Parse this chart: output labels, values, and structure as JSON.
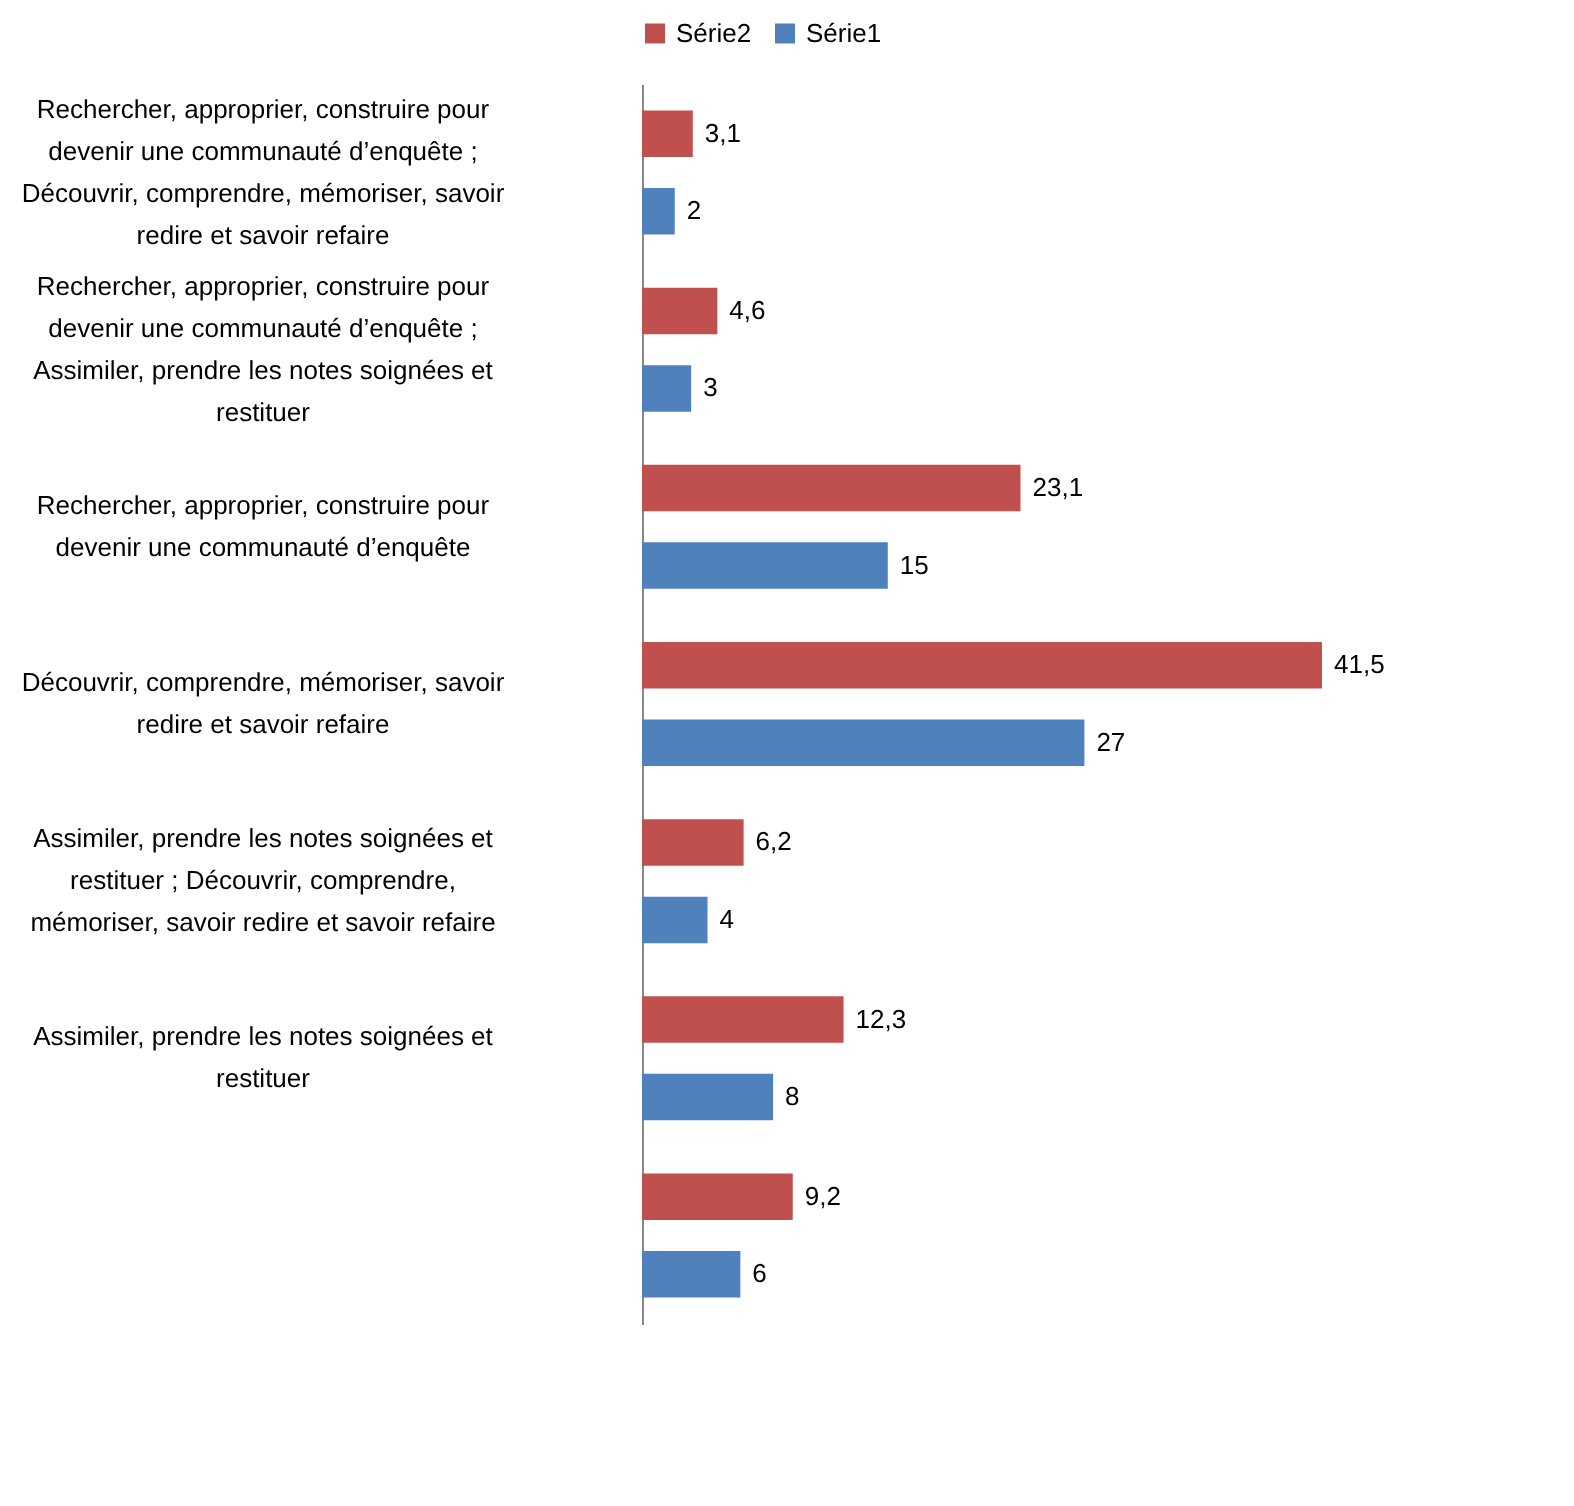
{
  "chart_data": {
    "type": "bar",
    "orientation": "horizontal",
    "categories": [
      "Rechercher, approprier, construire pour devenir une communauté d’enquête ; Découvrir, comprendre, mémoriser, savoir redire et savoir refaire",
      "Rechercher, approprier, construire pour devenir une communauté d’enquête ; Assimiler, prendre les notes soignées  et restituer",
      "Rechercher, approprier, construire pour devenir une communauté d’enquête",
      "Découvrir, comprendre, mémoriser, savoir redire et savoir refaire",
      "Assimiler, prendre les notes soignées  et restituer ; Découvrir, comprendre, mémoriser, savoir redire et savoir refaire",
      "Assimiler, prendre les notes soignées  et restituer",
      null
    ],
    "series": [
      {
        "name": "Série2",
        "color": "#c0504d",
        "values": [
          3.1,
          4.6,
          23.1,
          41.5,
          6.2,
          12.3,
          9.2
        ],
        "value_labels": [
          "3,1",
          "4,6",
          "23,1",
          "41,5",
          "6,2",
          "12,3",
          "9,2"
        ]
      },
      {
        "name": "Série1",
        "color": "#4f81bd",
        "values": [
          2,
          3,
          15,
          27,
          4,
          8,
          6
        ],
        "value_labels": [
          "2",
          "3",
          "15",
          "27",
          "4",
          "8",
          "6"
        ]
      }
    ],
    "legend": "top",
    "grid": false
  }
}
